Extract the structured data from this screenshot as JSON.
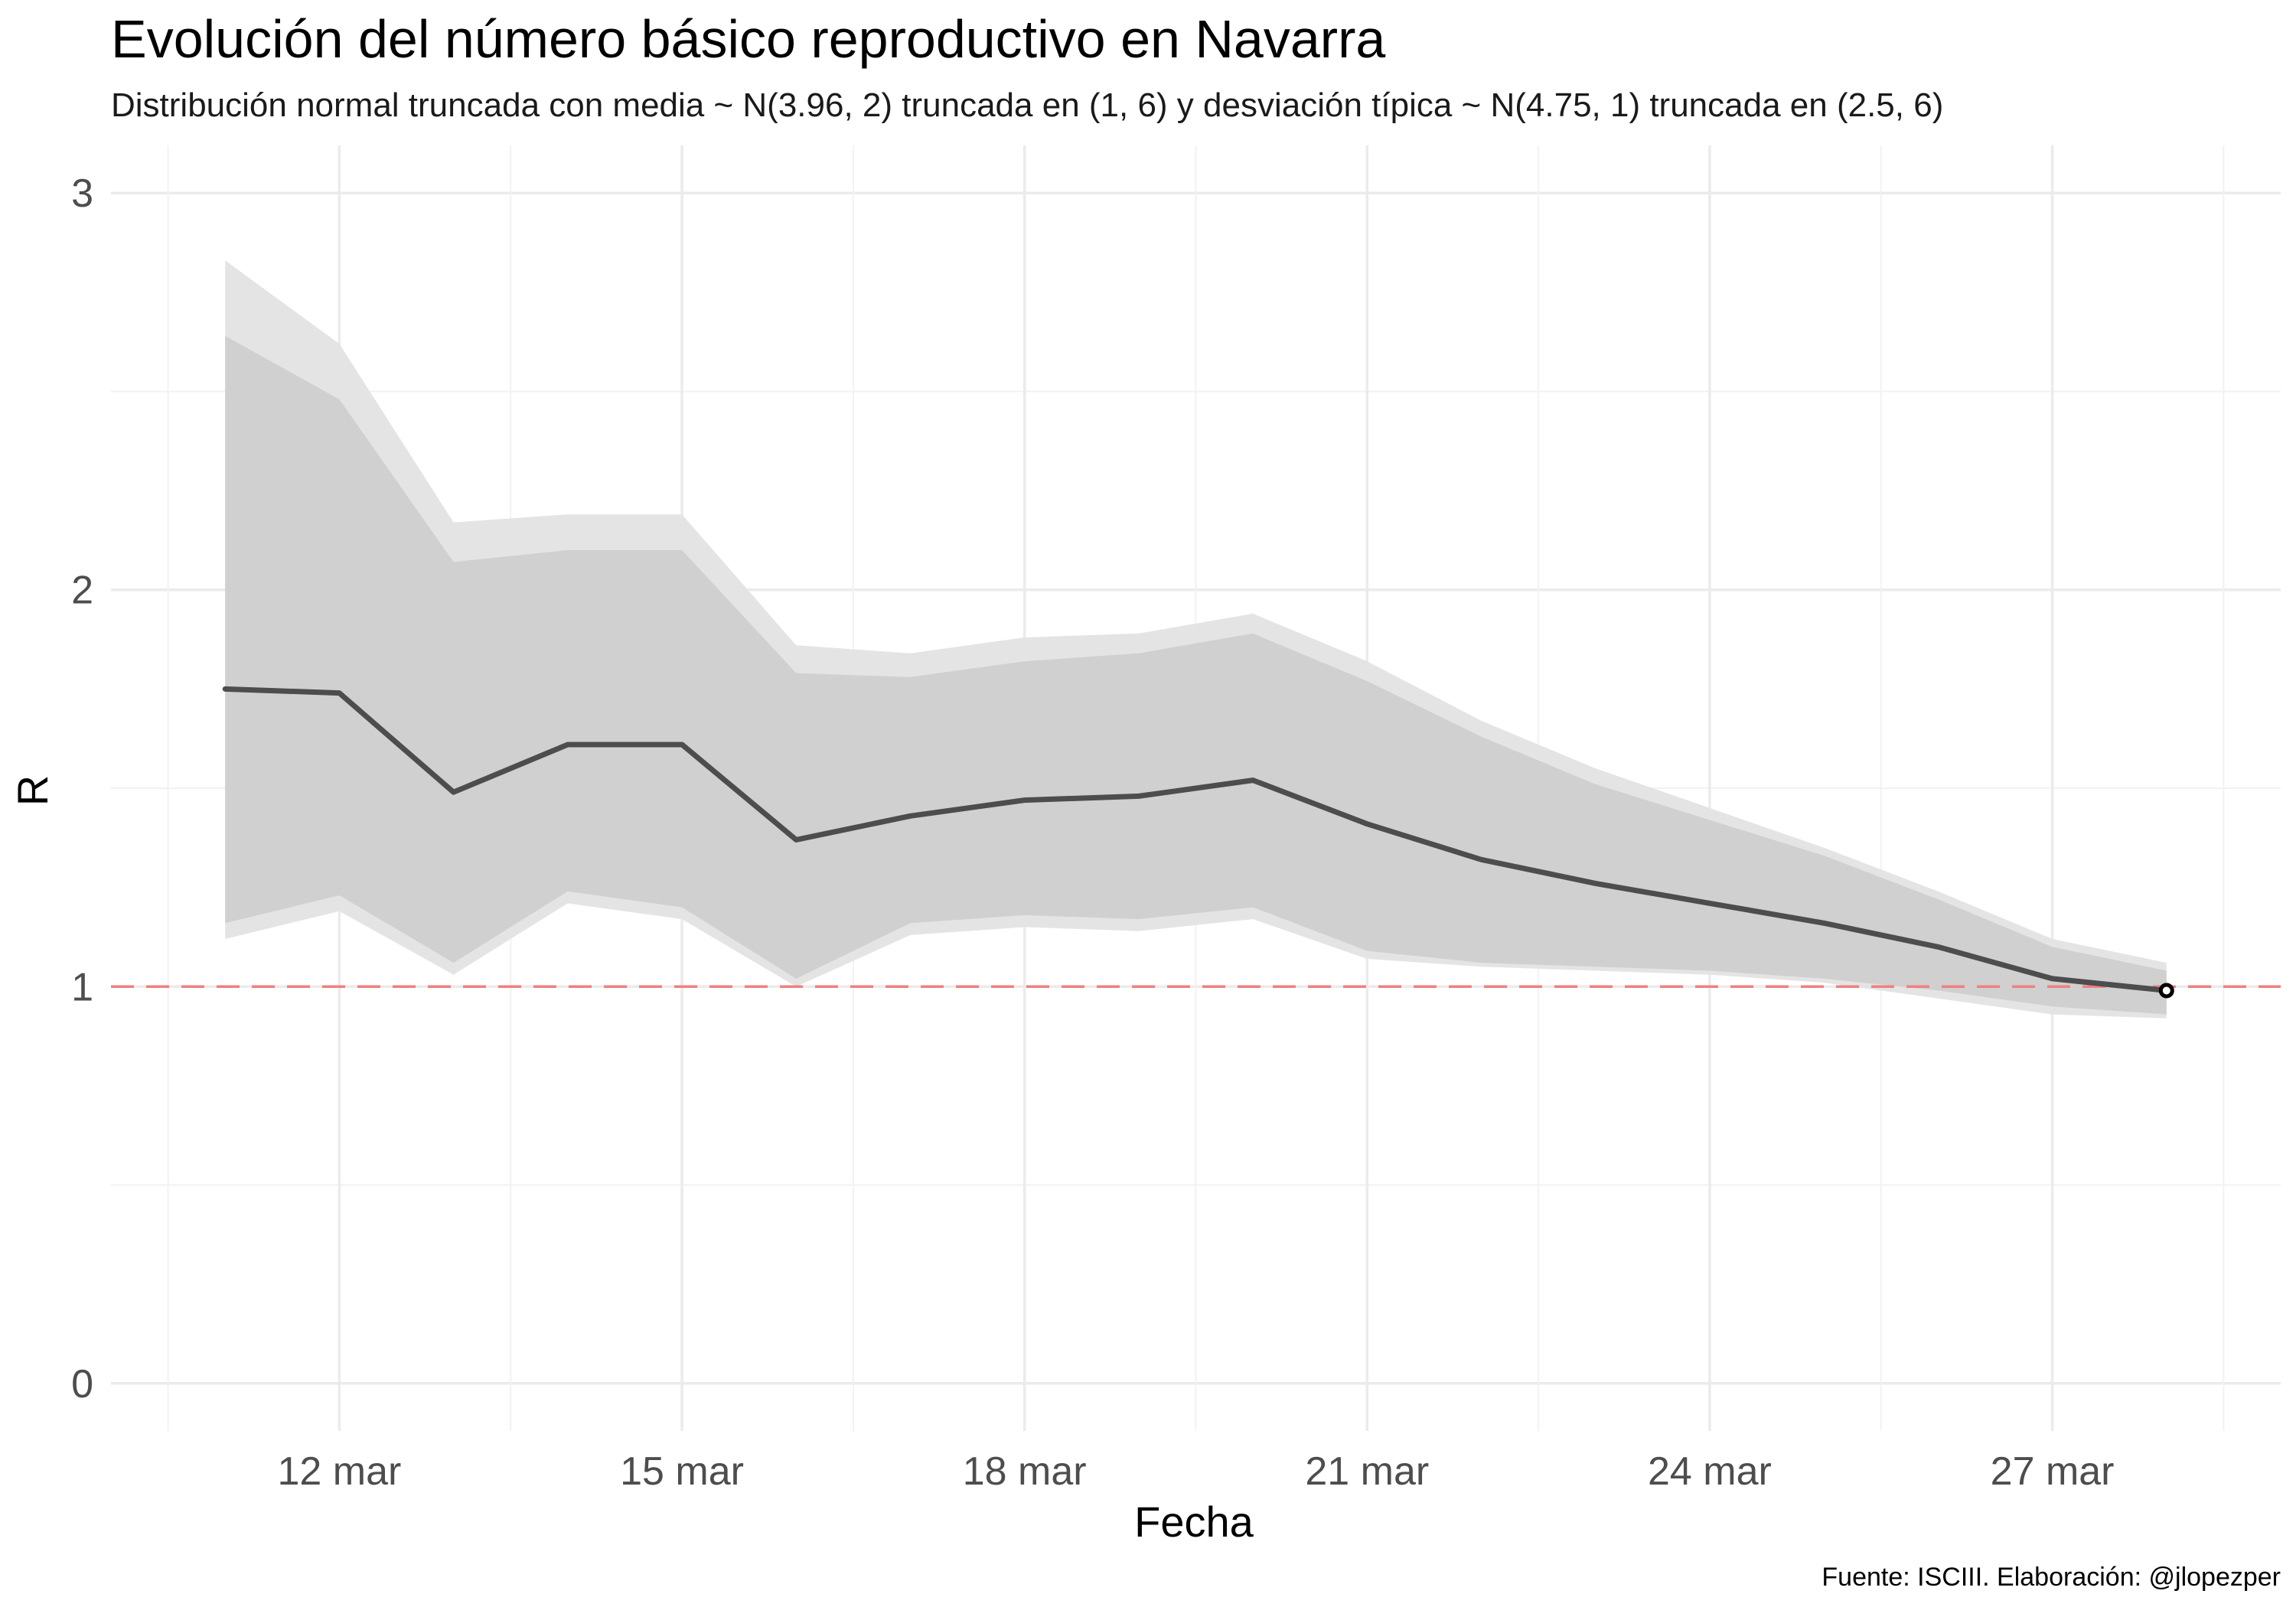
{
  "chart_data": {
    "type": "line",
    "title": "Evolución del número básico reproductivo en Navarra",
    "subtitle": "Distribución normal truncada con media ~ N(3.96, 2) truncada en (1, 6) y desviación típica ~ N(4.75, 1) truncada en (2.5, 6)",
    "xlabel": "Fecha",
    "ylabel": "R",
    "caption": "Fuente: ISCIII. Elaboración: @jlopezper",
    "x": [
      "2020-03-11",
      "2020-03-12",
      "2020-03-13",
      "2020-03-14",
      "2020-03-15",
      "2020-03-16",
      "2020-03-17",
      "2020-03-18",
      "2020-03-19",
      "2020-03-20",
      "2020-03-21",
      "2020-03-22",
      "2020-03-23",
      "2020-03-24",
      "2020-03-25",
      "2020-03-26",
      "2020-03-27",
      "2020-03-28"
    ],
    "x_ticks": [
      "2020-03-12",
      "2020-03-15",
      "2020-03-18",
      "2020-03-21",
      "2020-03-24",
      "2020-03-27"
    ],
    "x_tick_labels": [
      "12 mar",
      "15 mar",
      "18 mar",
      "21 mar",
      "24 mar",
      "27 mar"
    ],
    "xlim": [
      "2020-03-10",
      "2020-03-29"
    ],
    "ylim": [
      0,
      3
    ],
    "y_ticks": [
      0,
      1,
      2,
      3
    ],
    "y_tick_labels": [
      "0",
      "1",
      "2",
      "3"
    ],
    "grid": true,
    "series": [
      {
        "values": [
          1.75,
          1.74,
          1.49,
          1.61,
          1.61,
          1.37,
          1.43,
          1.47,
          1.48,
          1.52,
          1.41,
          1.32,
          1.26,
          1.21,
          1.16,
          1.1,
          1.02,
          0.99
        ]
      }
    ],
    "bands": [
      {
        "lower": [
          1.12,
          1.19,
          1.03,
          1.21,
          1.17,
          1.0,
          1.13,
          1.15,
          1.14,
          1.17,
          1.07,
          1.05,
          1.04,
          1.03,
          1.01,
          0.97,
          0.93,
          0.92
        ],
        "upper": [
          2.83,
          2.62,
          2.17,
          2.19,
          2.19,
          1.86,
          1.84,
          1.88,
          1.89,
          1.94,
          1.82,
          1.67,
          1.55,
          1.45,
          1.35,
          1.24,
          1.12,
          1.06
        ]
      },
      {
        "lower": [
          1.16,
          1.23,
          1.06,
          1.24,
          1.2,
          1.02,
          1.16,
          1.18,
          1.17,
          1.2,
          1.09,
          1.06,
          1.05,
          1.04,
          1.02,
          0.99,
          0.95,
          0.93
        ],
        "upper": [
          2.64,
          2.48,
          2.07,
          2.1,
          2.1,
          1.79,
          1.78,
          1.82,
          1.84,
          1.89,
          1.77,
          1.63,
          1.51,
          1.42,
          1.33,
          1.22,
          1.1,
          1.04
        ]
      }
    ],
    "reference_line": {
      "y": 1,
      "color": "#f08080",
      "style": "dashed"
    },
    "colors": {
      "line": "#4d4d4d",
      "band_outer": "#e4e4e4",
      "band_inner": "#d0d0d0",
      "point": "#000000"
    }
  }
}
